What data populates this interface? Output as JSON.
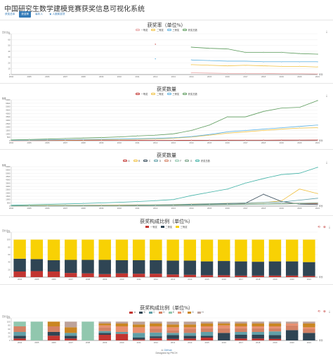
{
  "page": {
    "title": "中国研究生数学建模竞赛获奖信息可视化系统",
    "tabs": [
      {
        "label": "获奖总体",
        "active": false
      },
      {
        "label": "获奖率",
        "active": true
      },
      {
        "label": "每年人",
        "active": false
      },
      {
        "label": "★ 人数和奖项",
        "active": false
      }
    ]
  },
  "icons": {
    "download": "download-icon",
    "refresh": "refresh-icon",
    "restore": "restore-icon"
  },
  "colors": {
    "accent": "#337ab7",
    "first_prize": "#c23531",
    "second_prize": "#2f4554",
    "third_prize": "#f8d104"
  },
  "charts": [
    {
      "type": "line",
      "title": "获奖率（单位%）",
      "ylabel": "百分比%",
      "xlabel": "年份",
      "x": [
        "2004",
        "2005",
        "2006",
        "2007",
        "2008",
        "2009",
        "2010",
        "2011",
        "2012",
        "2013",
        "2014",
        "2015",
        "2016",
        "2017",
        "2018",
        "2019",
        "2020",
        "2021"
      ],
      "ylim": [
        0,
        70
      ],
      "yticks": [
        0,
        10,
        20,
        30,
        40,
        50,
        60,
        70
      ],
      "series": [
        {
          "name": "一等奖",
          "color": "#e6a0a0",
          "values": [
            null,
            null,
            null,
            null,
            null,
            null,
            null,
            null,
            null,
            null,
            3,
            2.5,
            2,
            2,
            2,
            1.5,
            1.5,
            1
          ]
        },
        {
          "name": "二等奖",
          "color": "#f0c040",
          "values": [
            null,
            null,
            null,
            null,
            null,
            null,
            null,
            null,
            null,
            null,
            17,
            16,
            15,
            16,
            15,
            14,
            14,
            13
          ]
        },
        {
          "name": "三等奖",
          "color": "#5bb0e0",
          "values": [
            null,
            null,
            null,
            null,
            null,
            null,
            null,
            null,
            null,
            null,
            25,
            24,
            23,
            23,
            22,
            22,
            22,
            22
          ]
        },
        {
          "name": "获奖总数",
          "color": "#5a9a5a",
          "values": [
            null,
            null,
            null,
            null,
            null,
            null,
            null,
            null,
            null,
            null,
            47,
            45,
            44,
            38,
            38,
            38,
            36,
            35
          ]
        }
      ],
      "outliers": [
        {
          "x": "2012",
          "y": 52,
          "color": "#c23531"
        },
        {
          "x": "2012",
          "y": 27,
          "color": "#5bb0e0"
        }
      ]
    },
    {
      "type": "line",
      "title": "获奖数量",
      "ylabel": "数量",
      "xlabel": "年份",
      "x": [
        "2004",
        "2005",
        "2006",
        "2007",
        "2008",
        "2009",
        "2010",
        "2011",
        "2012",
        "2013",
        "2014",
        "2015",
        "2016",
        "2017",
        "2018",
        "2019",
        "2020",
        "2021"
      ],
      "ylim": [
        0,
        6000
      ],
      "yticks": [
        0,
        500,
        1000,
        1500,
        2000,
        2500,
        3000,
        3500,
        4000,
        4500,
        5000,
        5500,
        6000
      ],
      "series": [
        {
          "name": "一等奖",
          "color": "#c23531",
          "values": [
            20,
            25,
            30,
            35,
            35,
            40,
            40,
            45,
            50,
            55,
            60,
            65,
            70,
            75,
            80,
            85,
            90,
            95
          ]
        },
        {
          "name": "二等奖",
          "color": "#f0c040",
          "values": [
            40,
            60,
            80,
            100,
            120,
            150,
            180,
            220,
            260,
            350,
            550,
            800,
            1100,
            1300,
            1500,
            1700,
            1850,
            1900
          ]
        },
        {
          "name": "三等奖",
          "color": "#5bb0e0",
          "values": [
            60,
            80,
            110,
            140,
            170,
            200,
            240,
            280,
            330,
            420,
            600,
            900,
            1300,
            1500,
            1700,
            1900,
            2100,
            2300
          ]
        },
        {
          "name": "获奖总数",
          "color": "#5a9a5a",
          "values": [
            120,
            180,
            240,
            310,
            380,
            460,
            560,
            700,
            800,
            1000,
            1500,
            2300,
            3500,
            3500,
            4300,
            4800,
            4900,
            5900
          ]
        }
      ]
    },
    {
      "type": "line",
      "title": "获奖数量",
      "ylabel": "数量",
      "xlabel": "年份",
      "x": [
        "2004",
        "2005",
        "2006",
        "2007",
        "2008",
        "2009",
        "2010",
        "2011",
        "2012",
        "2013",
        "2014",
        "2015",
        "2016",
        "2017",
        "2018",
        "2019",
        "2020",
        "2021"
      ],
      "ylim": [
        0,
        6000
      ],
      "yticks": [
        0,
        500,
        1000,
        1500,
        2000,
        2500,
        3000,
        3500,
        4000,
        4500,
        5000,
        5500,
        6000
      ],
      "series": [
        {
          "name": "A",
          "color": "#c23531",
          "values": [
            60,
            70,
            80,
            90,
            100,
            110,
            120,
            130,
            140,
            160,
            180,
            220,
            260,
            300,
            320,
            340,
            360,
            380
          ]
        },
        {
          "name": "B",
          "color": "#f0c040",
          "values": [
            80,
            90,
            100,
            110,
            120,
            140,
            160,
            180,
            200,
            240,
            300,
            360,
            420,
            480,
            520,
            800,
            2600,
            1900
          ]
        },
        {
          "name": "C",
          "color": "#2f4554",
          "values": [
            40,
            50,
            60,
            70,
            80,
            100,
            120,
            140,
            160,
            200,
            260,
            320,
            380,
            440,
            1800,
            700,
            300,
            250
          ]
        },
        {
          "name": "D",
          "color": "#61a0a8",
          "values": [
            50,
            60,
            70,
            80,
            90,
            100,
            120,
            150,
            180,
            220,
            280,
            340,
            400,
            480,
            560,
            620,
            900,
            1200
          ]
        },
        {
          "name": "E",
          "color": "#d48265",
          "values": [
            30,
            40,
            50,
            60,
            70,
            80,
            90,
            100,
            120,
            140,
            170,
            200,
            240,
            280,
            320,
            380,
            420,
            460
          ]
        },
        {
          "name": "F",
          "color": "#91c7ae",
          "values": [
            30,
            35,
            40,
            45,
            50,
            55,
            60,
            70,
            80,
            100,
            130,
            160,
            200,
            240,
            280,
            320,
            380,
            450
          ]
        },
        {
          "name": "G",
          "color": "#749f83",
          "values": [
            20,
            30,
            40,
            50,
            60,
            70,
            80,
            100,
            120,
            150,
            180,
            220,
            260,
            300,
            340,
            380,
            420,
            480
          ]
        },
        {
          "name": "获奖总数",
          "color": "#3fb1a5",
          "values": [
            130,
            200,
            260,
            330,
            400,
            480,
            580,
            700,
            820,
            1000,
            1600,
            2100,
            2600,
            3500,
            4200,
            4800,
            5000,
            5900
          ]
        }
      ]
    },
    {
      "type": "bar",
      "title": "获奖构成比例（单位%）",
      "ylabel": "百分比%",
      "xlabel": "年份",
      "x": [
        "2004",
        "2005",
        "2006",
        "2007",
        "2008",
        "2009",
        "2010",
        "2011",
        "2012",
        "2013",
        "2014",
        "2015",
        "2016",
        "2017",
        "2018",
        "2019",
        "2020",
        "2021"
      ],
      "ylim": [
        0,
        120
      ],
      "yticks": [
        0,
        20,
        40,
        60,
        80,
        100,
        120
      ],
      "series": [
        {
          "name": "一等奖",
          "color": "#c23531",
          "values": [
            15,
            16,
            15,
            11,
            10,
            8,
            10,
            9,
            9,
            7,
            6,
            5,
            5,
            4,
            4,
            4,
            4,
            3
          ]
        },
        {
          "name": "二等奖",
          "color": "#2f4554",
          "values": [
            34,
            32,
            30,
            35,
            36,
            38,
            35,
            36,
            36,
            37,
            38,
            37,
            38,
            38,
            37,
            38,
            38,
            37
          ]
        },
        {
          "name": "三等奖",
          "color": "#f8d104",
          "values": [
            51,
            52,
            55,
            54,
            54,
            54,
            55,
            55,
            55,
            56,
            56,
            58,
            57,
            58,
            59,
            58,
            58,
            60
          ]
        }
      ]
    },
    {
      "type": "bar",
      "title": "获奖构成比例（单位%）",
      "ylabel": "百分比%",
      "xlabel": "年份",
      "x": [
        "2004",
        "2005",
        "2006",
        "2007",
        "2008",
        "2009",
        "2010",
        "2011",
        "2012",
        "2013",
        "2014",
        "2015",
        "2016",
        "2017",
        "2018",
        "2019",
        "2020",
        "2021"
      ],
      "ylim": [
        0,
        120
      ],
      "yticks": [
        0,
        20,
        40,
        60,
        80,
        100,
        120
      ],
      "series": [
        {
          "name": "A",
          "color": "#c23531",
          "values": [
            10,
            0,
            25,
            10,
            0,
            30,
            35,
            5,
            12,
            8,
            10,
            15,
            0,
            10,
            10,
            8,
            0,
            0
          ]
        },
        {
          "name": "B",
          "color": "#2f4554",
          "values": [
            15,
            0,
            20,
            15,
            0,
            10,
            0,
            10,
            10,
            20,
            15,
            10,
            40,
            20,
            20,
            20,
            55,
            40
          ]
        },
        {
          "name": "C",
          "color": "#61a0a8",
          "values": [
            20,
            0,
            0,
            15,
            0,
            10,
            10,
            25,
            20,
            12,
            15,
            20,
            0,
            15,
            15,
            20,
            0,
            0
          ]
        },
        {
          "name": "D",
          "color": "#d48265",
          "values": [
            30,
            0,
            30,
            0,
            0,
            20,
            0,
            0,
            20,
            15,
            20,
            20,
            25,
            20,
            20,
            17,
            25,
            20
          ]
        },
        {
          "name": "E",
          "color": "#91c7ae",
          "values": [
            25,
            100,
            0,
            0,
            100,
            0,
            0,
            0,
            0,
            0,
            0,
            0,
            0,
            0,
            0,
            0,
            0,
            0
          ]
        },
        {
          "name": "F",
          "color": "#e98f6f",
          "values": [
            0,
            0,
            0,
            0,
            0,
            10,
            30,
            30,
            13,
            15,
            10,
            10,
            15,
            10,
            10,
            10,
            10,
            10
          ]
        },
        {
          "name": "G",
          "color": "#ca8622",
          "values": [
            0,
            0,
            25,
            30,
            0,
            10,
            15,
            15,
            15,
            15,
            15,
            15,
            10,
            15,
            15,
            15,
            0,
            20
          ]
        },
        {
          "name": "H",
          "color": "#bda29a",
          "values": [
            0,
            0,
            0,
            30,
            0,
            10,
            10,
            15,
            10,
            15,
            15,
            10,
            10,
            10,
            10,
            10,
            10,
            10
          ]
        }
      ]
    }
  ],
  "footer": {
    "line1": "GitHub",
    "line2": "Designed by PKCH"
  }
}
